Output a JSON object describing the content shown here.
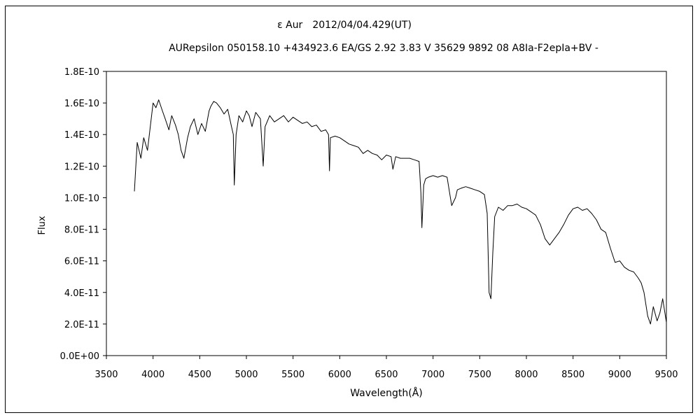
{
  "chart_data": {
    "type": "line",
    "title": "ε Aur　2012/04/04.429(UT)",
    "subtitle": "AURepsilon 050158.10 +434923.6 EA/GS 2.92 3.83 V 35629 9892 08 A8Ia-F2epIa+BV -",
    "xlabel": "Wavelength(Å)",
    "ylabel": "Flux",
    "xlim": [
      3500,
      9500
    ],
    "ylim": [
      0,
      1.8e-10
    ],
    "grid": false,
    "legend": "none",
    "x_ticks": [
      3500,
      4000,
      4500,
      5000,
      5500,
      6000,
      6500,
      7000,
      7500,
      8000,
      8500,
      9000,
      9500
    ],
    "x_tick_labels": [
      "3500",
      "4000",
      "4500",
      "5000",
      "5500",
      "6000",
      "6500",
      "7000",
      "7500",
      "8000",
      "8500",
      "9000",
      "9500"
    ],
    "y_ticks": [
      0,
      2e-11,
      4e-11,
      6e-11,
      8e-11,
      1e-10,
      1.2e-10,
      1.4e-10,
      1.6e-10,
      1.8e-10
    ],
    "y_tick_labels": [
      "0.0E+00",
      "2.0E-11",
      "4.0E-11",
      "6.0E-11",
      "8.0E-11",
      "1.0E-10",
      "1.2E-10",
      "1.4E-10",
      "1.6E-10",
      "1.8E-10"
    ],
    "series": [
      {
        "color": "#000000",
        "x": [
          3800,
          3830,
          3870,
          3900,
          3940,
          3970,
          4000,
          4030,
          4060,
          4100,
          4130,
          4170,
          4200,
          4240,
          4270,
          4300,
          4330,
          4370,
          4400,
          4440,
          4480,
          4520,
          4560,
          4600,
          4620,
          4650,
          4680,
          4720,
          4760,
          4800,
          4840,
          4860,
          4870,
          4890,
          4920,
          4960,
          5000,
          5030,
          5060,
          5100,
          5150,
          5170,
          5180,
          5200,
          5250,
          5300,
          5350,
          5400,
          5450,
          5500,
          5550,
          5600,
          5650,
          5700,
          5750,
          5800,
          5850,
          5880,
          5890,
          5900,
          5950,
          6000,
          6050,
          6100,
          6150,
          6200,
          6250,
          6300,
          6350,
          6400,
          6450,
          6500,
          6550,
          6570,
          6600,
          6650,
          6700,
          6750,
          6800,
          6850,
          6870,
          6880,
          6900,
          6920,
          6950,
          7000,
          7050,
          7100,
          7150,
          7180,
          7200,
          7240,
          7260,
          7300,
          7350,
          7400,
          7450,
          7500,
          7550,
          7580,
          7600,
          7620,
          7640,
          7660,
          7700,
          7750,
          7800,
          7850,
          7900,
          7950,
          8000,
          8050,
          8100,
          8150,
          8200,
          8250,
          8300,
          8350,
          8400,
          8450,
          8500,
          8550,
          8600,
          8650,
          8700,
          8750,
          8800,
          8850,
          8900,
          8950,
          9000,
          9050,
          9100,
          9150,
          9200,
          9230,
          9260,
          9300,
          9330,
          9360,
          9400,
          9430,
          9460,
          9500
        ],
        "y": [
          1.04e-10,
          1.35e-10,
          1.25e-10,
          1.38e-10,
          1.3e-10,
          1.45e-10,
          1.6e-10,
          1.57e-10,
          1.62e-10,
          1.55e-10,
          1.5e-10,
          1.43e-10,
          1.52e-10,
          1.46e-10,
          1.4e-10,
          1.3e-10,
          1.25e-10,
          1.38e-10,
          1.45e-10,
          1.5e-10,
          1.4e-10,
          1.47e-10,
          1.42e-10,
          1.55e-10,
          1.58e-10,
          1.61e-10,
          1.6e-10,
          1.57e-10,
          1.53e-10,
          1.56e-10,
          1.45e-10,
          1.4e-10,
          1.08e-10,
          1.4e-10,
          1.52e-10,
          1.48e-10,
          1.55e-10,
          1.52e-10,
          1.45e-10,
          1.54e-10,
          1.5e-10,
          1.3e-10,
          1.2e-10,
          1.45e-10,
          1.52e-10,
          1.48e-10,
          1.5e-10,
          1.52e-10,
          1.48e-10,
          1.51e-10,
          1.49e-10,
          1.47e-10,
          1.48e-10,
          1.45e-10,
          1.46e-10,
          1.42e-10,
          1.43e-10,
          1.4e-10,
          1.17e-10,
          1.38e-10,
          1.39e-10,
          1.38e-10,
          1.36e-10,
          1.34e-10,
          1.33e-10,
          1.32e-10,
          1.28e-10,
          1.3e-10,
          1.28e-10,
          1.27e-10,
          1.24e-10,
          1.27e-10,
          1.26e-10,
          1.18e-10,
          1.26e-10,
          1.25e-10,
          1.25e-10,
          1.25e-10,
          1.24e-10,
          1.23e-10,
          1.03e-10,
          8.1e-11,
          1.08e-10,
          1.12e-10,
          1.13e-10,
          1.14e-10,
          1.13e-10,
          1.14e-10,
          1.13e-10,
          1.02e-10,
          9.5e-11,
          1e-10,
          1.05e-10,
          1.06e-10,
          1.07e-10,
          1.06e-10,
          1.05e-10,
          1.04e-10,
          1.02e-10,
          9e-11,
          4e-11,
          3.6e-11,
          6.5e-11,
          8.8e-11,
          9.4e-11,
          9.2e-11,
          9.5e-11,
          9.5e-11,
          9.6e-11,
          9.4e-11,
          9.3e-11,
          9.1e-11,
          8.9e-11,
          8.3e-11,
          7.4e-11,
          7e-11,
          7.4e-11,
          7.8e-11,
          8.3e-11,
          8.9e-11,
          9.3e-11,
          9.4e-11,
          9.2e-11,
          9.3e-11,
          9e-11,
          8.6e-11,
          8e-11,
          7.8e-11,
          6.8e-11,
          5.9e-11,
          6e-11,
          5.6e-11,
          5.4e-11,
          5.3e-11,
          4.9e-11,
          4.6e-11,
          4e-11,
          2.5e-11,
          2e-11,
          3.1e-11,
          2.2e-11,
          2.7e-11,
          3.6e-11,
          2.1e-11
        ]
      }
    ]
  }
}
